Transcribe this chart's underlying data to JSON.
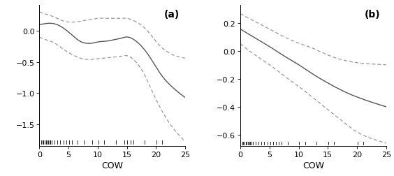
{
  "panel_a": {
    "label": "(a)",
    "xlim": [
      0,
      25
    ],
    "ylim": [
      -1.85,
      0.42
    ],
    "yticks": [
      0.0,
      -0.5,
      -1.0,
      -1.5
    ],
    "xticks": [
      0,
      5,
      10,
      15,
      20,
      25
    ],
    "xlabel": "COW",
    "rug_x": [
      0.3,
      0.5,
      0.7,
      0.9,
      1.1,
      1.3,
      1.5,
      1.7,
      1.9,
      2.1,
      2.6,
      3.1,
      3.6,
      4.1,
      4.6,
      5.1,
      5.6,
      6.6,
      7.6,
      9.1,
      10.1,
      11.1,
      13.1,
      14.6,
      15.1,
      15.6,
      16.1,
      18.1,
      20.1,
      21.1,
      25.0
    ],
    "mean_x": [
      0,
      1,
      2,
      3,
      4,
      5,
      6,
      7,
      8,
      9,
      10,
      11,
      12,
      13,
      14,
      15,
      16,
      17,
      18,
      19,
      20,
      21,
      22,
      23,
      24,
      25
    ],
    "mean_y": [
      0.1,
      0.115,
      0.12,
      0.1,
      0.05,
      -0.02,
      -0.1,
      -0.17,
      -0.2,
      -0.2,
      -0.18,
      -0.17,
      -0.16,
      -0.14,
      -0.12,
      -0.1,
      -0.13,
      -0.2,
      -0.3,
      -0.43,
      -0.58,
      -0.72,
      -0.83,
      -0.92,
      -1.0,
      -1.07
    ],
    "upper_x": [
      0,
      1,
      2,
      3,
      4,
      5,
      6,
      7,
      8,
      9,
      10,
      11,
      12,
      13,
      14,
      15,
      16,
      17,
      18,
      19,
      20,
      21,
      22,
      23,
      24,
      25
    ],
    "upper_y": [
      0.3,
      0.27,
      0.24,
      0.2,
      0.16,
      0.14,
      0.14,
      0.15,
      0.17,
      0.18,
      0.2,
      0.2,
      0.2,
      0.2,
      0.2,
      0.2,
      0.17,
      0.12,
      0.05,
      -0.05,
      -0.17,
      -0.27,
      -0.34,
      -0.39,
      -0.42,
      -0.44
    ],
    "lower_x": [
      0,
      1,
      2,
      3,
      4,
      5,
      6,
      7,
      8,
      9,
      10,
      11,
      12,
      13,
      14,
      15,
      16,
      17,
      18,
      19,
      20,
      21,
      22,
      23,
      24,
      25
    ],
    "lower_y": [
      -0.1,
      -0.14,
      -0.17,
      -0.22,
      -0.29,
      -0.35,
      -0.4,
      -0.44,
      -0.46,
      -0.46,
      -0.45,
      -0.44,
      -0.43,
      -0.42,
      -0.41,
      -0.4,
      -0.45,
      -0.55,
      -0.7,
      -0.9,
      -1.1,
      -1.28,
      -1.44,
      -1.57,
      -1.68,
      -1.78
    ]
  },
  "panel_b": {
    "label": "(b)",
    "xlim": [
      0,
      25
    ],
    "ylim": [
      -0.68,
      0.33
    ],
    "yticks": [
      0.2,
      0.0,
      -0.2,
      -0.4,
      -0.6
    ],
    "xticks": [
      0,
      5,
      10,
      15,
      20,
      25
    ],
    "xlabel": "COW",
    "rug_x": [
      0.3,
      0.5,
      0.7,
      0.9,
      1.1,
      1.3,
      1.5,
      1.7,
      1.9,
      2.1,
      2.6,
      3.1,
      3.6,
      4.1,
      4.6,
      5.1,
      5.6,
      6.1,
      6.6,
      7.1,
      8.1,
      10.1,
      11.1,
      13.1,
      15.1,
      16.1,
      20.1,
      21.1,
      25.0
    ],
    "mean_x": [
      0,
      2,
      5,
      8,
      10,
      12,
      15,
      18,
      20,
      22,
      25
    ],
    "mean_y": [
      0.155,
      0.105,
      0.03,
      -0.05,
      -0.1,
      -0.155,
      -0.23,
      -0.295,
      -0.33,
      -0.36,
      -0.4
    ],
    "upper_x": [
      0,
      2,
      5,
      8,
      10,
      12,
      15,
      18,
      20,
      22,
      25
    ],
    "upper_y": [
      0.265,
      0.22,
      0.155,
      0.09,
      0.055,
      0.025,
      -0.03,
      -0.07,
      -0.085,
      -0.093,
      -0.1
    ],
    "lower_x": [
      0,
      2,
      5,
      8,
      10,
      12,
      15,
      18,
      20,
      22,
      25
    ],
    "lower_y": [
      0.05,
      -0.015,
      -0.1,
      -0.195,
      -0.255,
      -0.32,
      -0.42,
      -0.52,
      -0.58,
      -0.62,
      -0.66
    ]
  },
  "line_color": "#555555",
  "dash_color": "#999999",
  "bg_color": "#ffffff",
  "label_fontsize": 10,
  "tick_fontsize": 8,
  "xlabel_fontsize": 9
}
